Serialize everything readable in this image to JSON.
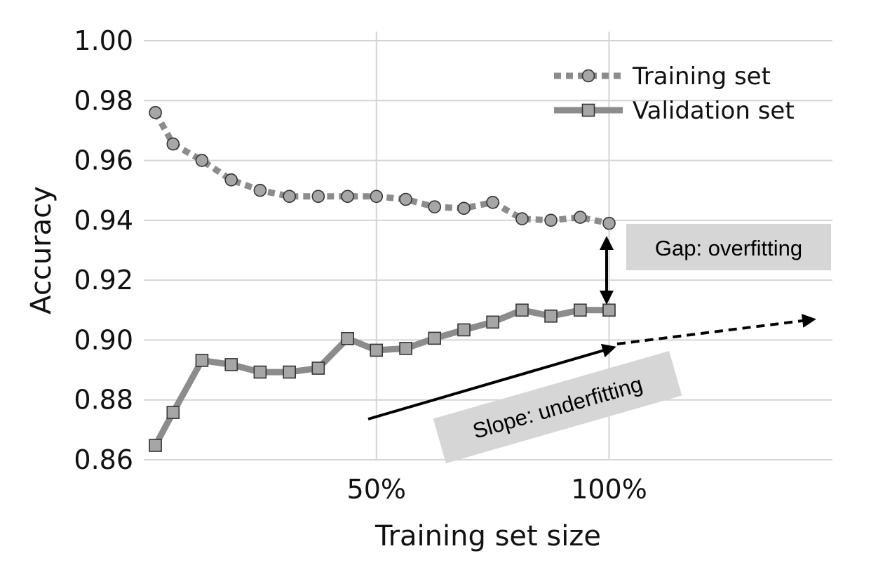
{
  "chart_data": {
    "type": "line",
    "xlabel": "Training set size",
    "ylabel": "Accuracy",
    "x_tick_labels": [
      "50%",
      "100%"
    ],
    "x_ticks": [
      50,
      100
    ],
    "xlim": [
      0,
      148
    ],
    "y_tick_labels": [
      "0.86",
      "0.88",
      "0.90",
      "0.92",
      "0.94",
      "0.96",
      "0.98",
      "1.00"
    ],
    "y_ticks": [
      0.86,
      0.88,
      0.9,
      0.92,
      0.94,
      0.96,
      0.98,
      1.0
    ],
    "ylim": [
      0.86,
      1.0
    ],
    "grid": true,
    "legend_position": "top-right",
    "x": [
      2.5,
      6.3,
      12.5,
      18.8,
      25,
      31.3,
      37.5,
      43.8,
      50,
      56.3,
      62.5,
      68.8,
      75,
      81.3,
      87.5,
      93.8,
      100
    ],
    "series": [
      {
        "name": "Training set",
        "marker": "circle",
        "style": "dotted",
        "color": "#8c8c8c",
        "values": [
          0.976,
          0.9655,
          0.96,
          0.9535,
          0.95,
          0.948,
          0.948,
          0.948,
          0.948,
          0.947,
          0.9445,
          0.944,
          0.946,
          0.9405,
          0.94,
          0.941,
          0.939
        ]
      },
      {
        "name": "Validation set",
        "marker": "square",
        "style": "solid",
        "color": "#8c8c8c",
        "values": [
          0.8648,
          0.8758,
          0.8932,
          0.8918,
          0.8893,
          0.8893,
          0.8906,
          0.9005,
          0.8966,
          0.8972,
          0.9006,
          0.9034,
          0.906,
          0.91,
          0.908,
          0.91,
          0.91
        ]
      }
    ],
    "annotations": [
      {
        "name": "gap",
        "text": "Gap: overfitting"
      },
      {
        "name": "slope",
        "text": "Slope: underfitting"
      }
    ]
  }
}
